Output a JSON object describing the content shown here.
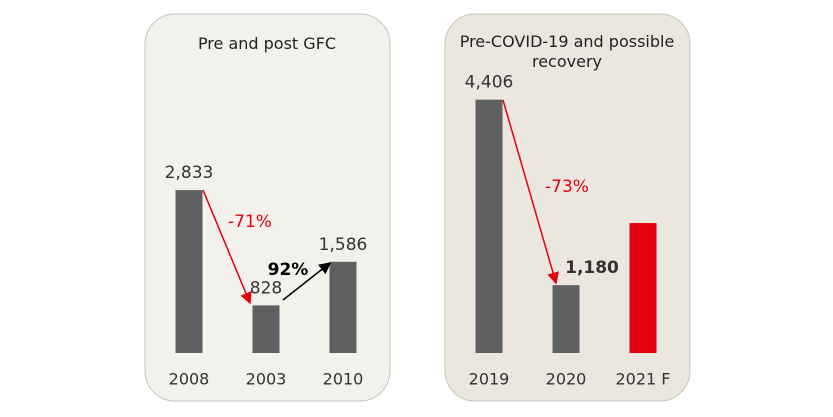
{
  "chart_data": [
    {
      "type": "bar",
      "title": "Pre and post GFC",
      "categories": [
        "2008",
        "2003",
        "2010"
      ],
      "values": [
        2833,
        828,
        1586
      ],
      "value_labels": [
        "2,833",
        "828",
        "1,586"
      ],
      "colors": [
        "#5f6062",
        "#5f6062",
        "#5f6062"
      ],
      "annotations": [
        {
          "text": "-71%",
          "color": "#e3000f"
        },
        {
          "text": "92%",
          "color": "#000000"
        }
      ]
    },
    {
      "type": "bar",
      "title": "Pre-COVID-19 and possible recovery",
      "categories": [
        "2019",
        "2020",
        "2021 F"
      ],
      "values": [
        4406,
        1180,
        2260
      ],
      "value_labels": [
        "4,406",
        "1,180",
        null
      ],
      "colors": [
        "#5f6062",
        "#5f6062",
        "#e3000f"
      ],
      "annotations": [
        {
          "text": "-73%",
          "color": "#e3000f"
        }
      ]
    }
  ]
}
